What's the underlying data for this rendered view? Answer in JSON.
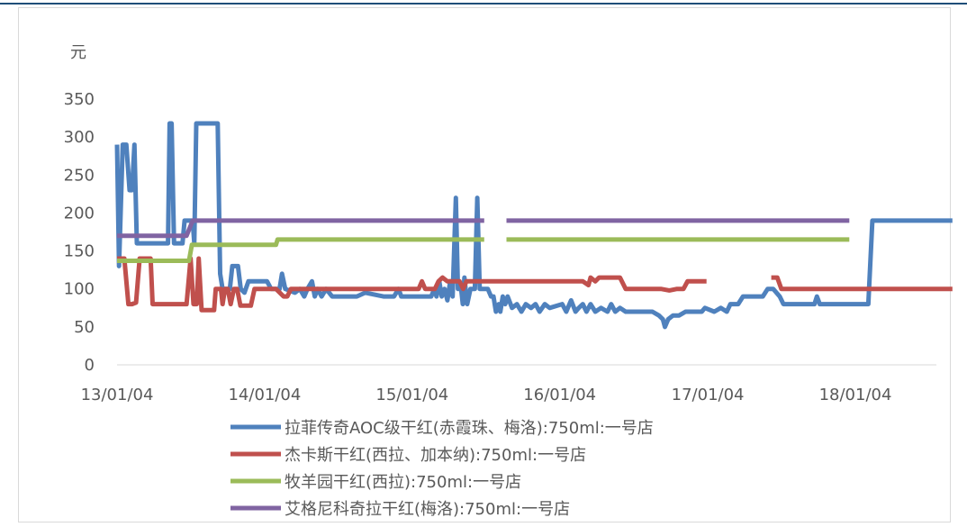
{
  "chart_data": {
    "type": "line",
    "ylabel": "元",
    "ylim": [
      0,
      350
    ],
    "yticks": [
      0,
      50,
      100,
      150,
      200,
      250,
      300,
      350
    ],
    "xticks": [
      "13/01/04",
      "14/01/04",
      "15/01/04",
      "16/01/04",
      "17/01/04",
      "18/01/04"
    ],
    "xlim": [
      "2013-01-04",
      "2018-09-01"
    ],
    "legend_position": "bottom",
    "series": [
      {
        "name": "拉菲传奇AOC级干红(赤霞珠、梅洛):750ml:一号店",
        "color": "#4f81bd",
        "points": [
          [
            "2013-01-04",
            290
          ],
          [
            "2013-01-09",
            130
          ],
          [
            "2013-01-18",
            290
          ],
          [
            "2013-01-27",
            290
          ],
          [
            "2013-02-04",
            230
          ],
          [
            "2013-02-10",
            230
          ],
          [
            "2013-02-16",
            290
          ],
          [
            "2013-02-22",
            160
          ],
          [
            "2013-05-10",
            160
          ],
          [
            "2013-05-14",
            318
          ],
          [
            "2013-05-19",
            318
          ],
          [
            "2013-05-25",
            160
          ],
          [
            "2013-06-15",
            160
          ],
          [
            "2013-06-20",
            190
          ],
          [
            "2013-07-10",
            190
          ],
          [
            "2013-07-14",
            160
          ],
          [
            "2013-07-19",
            318
          ],
          [
            "2013-09-10",
            318
          ],
          [
            "2013-09-16",
            120
          ],
          [
            "2013-09-22",
            100
          ],
          [
            "2013-10-10",
            100
          ],
          [
            "2013-10-16",
            130
          ],
          [
            "2013-10-30",
            130
          ],
          [
            "2013-11-06",
            100
          ],
          [
            "2013-11-15",
            95
          ],
          [
            "2013-11-25",
            110
          ],
          [
            "2014-01-10",
            110
          ],
          [
            "2014-01-20",
            100
          ],
          [
            "2014-02-10",
            100
          ],
          [
            "2014-02-16",
            120
          ],
          [
            "2014-02-24",
            100
          ],
          [
            "2014-03-20",
            95
          ],
          [
            "2014-04-01",
            100
          ],
          [
            "2014-04-12",
            90
          ],
          [
            "2014-04-20",
            100
          ],
          [
            "2014-05-01",
            110
          ],
          [
            "2014-05-08",
            90
          ],
          [
            "2014-05-15",
            100
          ],
          [
            "2014-05-25",
            90
          ],
          [
            "2014-06-05",
            100
          ],
          [
            "2014-06-20",
            90
          ],
          [
            "2014-08-20",
            90
          ],
          [
            "2014-09-10",
            95
          ],
          [
            "2014-10-25",
            90
          ],
          [
            "2014-11-20",
            90
          ],
          [
            "2014-12-01",
            100
          ],
          [
            "2014-12-08",
            90
          ],
          [
            "2015-01-04",
            90
          ],
          [
            "2015-02-20",
            90
          ],
          [
            "2015-02-28",
            100
          ],
          [
            "2015-03-05",
            90
          ],
          [
            "2015-03-12",
            110
          ],
          [
            "2015-03-18",
            90
          ],
          [
            "2015-03-25",
            100
          ],
          [
            "2015-04-01",
            85
          ],
          [
            "2015-04-08",
            110
          ],
          [
            "2015-04-14",
            90
          ],
          [
            "2015-04-22",
            220
          ],
          [
            "2015-04-27",
            100
          ],
          [
            "2015-05-05",
            100
          ],
          [
            "2015-05-09",
            80
          ],
          [
            "2015-05-13",
            115
          ],
          [
            "2015-05-20",
            80
          ],
          [
            "2015-05-28",
            100
          ],
          [
            "2015-06-08",
            100
          ],
          [
            "2015-06-14",
            220
          ],
          [
            "2015-06-20",
            100
          ],
          [
            "2015-07-10",
            100
          ],
          [
            "2015-07-18",
            90
          ],
          [
            "2015-07-24",
            90
          ],
          [
            "2015-07-30",
            70
          ],
          [
            "2015-08-06",
            80
          ],
          [
            "2015-08-10",
            70
          ],
          [
            "2015-08-16",
            90
          ],
          [
            "2015-08-22",
            80
          ],
          [
            "2015-08-28",
            90
          ],
          [
            "2015-09-08",
            75
          ],
          [
            "2015-09-20",
            80
          ],
          [
            "2015-10-01",
            70
          ],
          [
            "2015-10-12",
            80
          ],
          [
            "2015-10-25",
            75
          ],
          [
            "2015-11-05",
            80
          ],
          [
            "2015-11-15",
            70
          ],
          [
            "2015-11-28",
            80
          ],
          [
            "2015-12-10",
            75
          ],
          [
            "2016-01-10",
            80
          ],
          [
            "2016-01-20",
            70
          ],
          [
            "2016-02-01",
            85
          ],
          [
            "2016-02-12",
            70
          ],
          [
            "2016-02-20",
            75
          ],
          [
            "2016-03-01",
            80
          ],
          [
            "2016-03-10",
            70
          ],
          [
            "2016-03-20",
            80
          ],
          [
            "2016-04-01",
            70
          ],
          [
            "2016-04-15",
            75
          ],
          [
            "2016-05-01",
            70
          ],
          [
            "2016-05-10",
            80
          ],
          [
            "2016-05-20",
            70
          ],
          [
            "2016-06-01",
            75
          ],
          [
            "2016-06-15",
            70
          ],
          [
            "2016-08-01",
            70
          ],
          [
            "2016-08-20",
            70
          ],
          [
            "2016-09-05",
            65
          ],
          [
            "2016-09-15",
            60
          ],
          [
            "2016-09-20",
            50
          ],
          [
            "2016-09-28",
            60
          ],
          [
            "2016-10-10",
            65
          ],
          [
            "2016-10-25",
            65
          ],
          [
            "2016-11-10",
            70
          ],
          [
            "2016-12-01",
            70
          ],
          [
            "2016-12-20",
            70
          ],
          [
            "2016-12-28",
            75
          ],
          [
            "2017-01-20",
            70
          ],
          [
            "2017-02-05",
            75
          ],
          [
            "2017-02-20",
            70
          ],
          [
            "2017-03-01",
            80
          ],
          [
            "2017-03-20",
            80
          ],
          [
            "2017-04-01",
            90
          ],
          [
            "2017-05-01",
            90
          ],
          [
            "2017-05-20",
            90
          ],
          [
            "2017-06-01",
            100
          ],
          [
            "2017-06-15",
            100
          ],
          [
            "2017-07-01",
            90
          ],
          [
            "2017-07-10",
            80
          ],
          [
            "2017-08-01",
            80
          ],
          [
            "2017-08-20",
            80
          ],
          [
            "2017-09-25",
            80
          ],
          [
            "2017-10-01",
            90
          ],
          [
            "2017-10-08",
            80
          ],
          [
            "2017-11-01",
            80
          ],
          [
            "2017-12-01",
            80
          ],
          [
            "2017-12-20",
            80
          ],
          [
            "2018-01-25",
            80
          ],
          [
            "2018-02-05",
            80
          ],
          [
            "2018-02-15",
            190
          ],
          [
            "2018-02-25",
            190
          ],
          [
            "2018-05-01",
            190
          ],
          [
            "2018-09-01",
            190
          ]
        ]
      },
      {
        "name": "杰卡斯干红(西拉、加本纳):750ml:一号店",
        "color": "#c0504d",
        "points": [
          [
            "2013-01-04",
            140
          ],
          [
            "2013-01-22",
            140
          ],
          [
            "2013-02-01",
            80
          ],
          [
            "2013-02-10",
            80
          ],
          [
            "2013-02-20",
            82
          ],
          [
            "2013-03-01",
            140
          ],
          [
            "2013-03-15",
            140
          ],
          [
            "2013-03-28",
            140
          ],
          [
            "2013-04-02",
            80
          ],
          [
            "2013-05-01",
            80
          ],
          [
            "2013-06-01",
            80
          ],
          [
            "2013-06-25",
            80
          ],
          [
            "2013-07-05",
            140
          ],
          [
            "2013-07-12",
            80
          ],
          [
            "2013-07-20",
            80
          ],
          [
            "2013-07-25",
            140
          ],
          [
            "2013-08-01",
            72
          ],
          [
            "2013-08-20",
            72
          ],
          [
            "2013-09-01",
            72
          ],
          [
            "2013-09-05",
            100
          ],
          [
            "2013-09-18",
            100
          ],
          [
            "2013-09-22",
            80
          ],
          [
            "2013-09-28",
            100
          ],
          [
            "2013-10-05",
            100
          ],
          [
            "2013-10-12",
            80
          ],
          [
            "2013-10-20",
            100
          ],
          [
            "2013-10-28",
            100
          ],
          [
            "2013-11-05",
            78
          ],
          [
            "2013-12-01",
            78
          ],
          [
            "2013-12-10",
            100
          ],
          [
            "2014-01-01",
            100
          ],
          [
            "2014-01-20",
            100
          ],
          [
            "2014-02-01",
            100
          ],
          [
            "2014-02-20",
            90
          ],
          [
            "2014-03-01",
            90
          ],
          [
            "2014-03-10",
            100
          ],
          [
            "2014-04-20",
            100
          ],
          [
            "2014-05-01",
            100
          ],
          [
            "2014-10-01",
            100
          ],
          [
            "2014-12-01",
            100
          ],
          [
            "2015-01-01",
            100
          ],
          [
            "2015-01-20",
            100
          ],
          [
            "2015-01-28",
            110
          ],
          [
            "2015-02-05",
            100
          ],
          [
            "2015-03-01",
            100
          ],
          [
            "2015-03-10",
            110
          ],
          [
            "2015-03-20",
            115
          ],
          [
            "2015-04-01",
            110
          ],
          [
            "2015-05-01",
            110
          ],
          [
            "2015-05-10",
            100
          ],
          [
            "2015-05-18",
            110
          ],
          [
            "2015-06-01",
            110
          ],
          [
            "2015-07-01",
            110
          ],
          [
            "2015-08-01",
            110
          ],
          [
            "2015-09-01",
            110
          ],
          [
            "2015-10-01",
            110
          ],
          [
            "2015-11-01",
            110
          ],
          [
            "2015-12-01",
            110
          ],
          [
            "2016-01-01",
            110
          ],
          [
            "2016-02-01",
            110
          ],
          [
            "2016-03-01",
            110
          ],
          [
            "2016-03-15",
            105
          ],
          [
            "2016-03-20",
            115
          ],
          [
            "2016-04-01",
            110
          ],
          [
            "2016-04-10",
            115
          ],
          [
            "2016-05-01",
            115
          ],
          [
            "2016-06-01",
            115
          ],
          [
            "2016-06-15",
            100
          ],
          [
            "2016-07-15",
            100
          ],
          [
            "2016-08-01",
            100
          ],
          [
            "2016-08-20",
            100
          ],
          [
            "2016-09-10",
            100
          ],
          [
            "2016-10-01",
            98
          ],
          [
            "2016-10-20",
            100
          ],
          [
            "2016-11-05",
            100
          ],
          [
            "2016-11-15",
            110
          ],
          [
            "2017-01-01",
            110
          ],
          [
            "2017-01-15",
            null
          ],
          [
            "2017-06-05",
            null
          ],
          [
            "2017-06-10",
            115
          ],
          [
            "2017-06-25",
            115
          ],
          [
            "2017-07-05",
            100
          ],
          [
            "2017-12-31",
            100
          ],
          [
            "2018-06-01",
            100
          ],
          [
            "2018-09-01",
            100
          ]
        ]
      },
      {
        "name": "牧羊园干红(西拉):750ml:一号店",
        "color": "#9bbb59",
        "points": [
          [
            "2013-01-04",
            137
          ],
          [
            "2013-07-01",
            137
          ],
          [
            "2013-07-08",
            158
          ],
          [
            "2014-02-01",
            158
          ],
          [
            "2014-02-05",
            165
          ],
          [
            "2015-07-01",
            165
          ],
          [
            "2015-07-15",
            null
          ],
          [
            "2015-08-20",
            null
          ],
          [
            "2015-08-25",
            165
          ],
          [
            "2017-12-20",
            165
          ]
        ]
      },
      {
        "name": "艾格尼科奇拉干红(梅洛):750ml:一号店",
        "color": "#8064a2",
        "points": [
          [
            "2013-01-04",
            170
          ],
          [
            "2013-06-25",
            170
          ],
          [
            "2013-07-10",
            190
          ],
          [
            "2015-07-01",
            190
          ],
          [
            "2015-07-15",
            null
          ],
          [
            "2015-08-20",
            null
          ],
          [
            "2015-08-25",
            190
          ],
          [
            "2017-12-20",
            190
          ]
        ]
      }
    ]
  }
}
